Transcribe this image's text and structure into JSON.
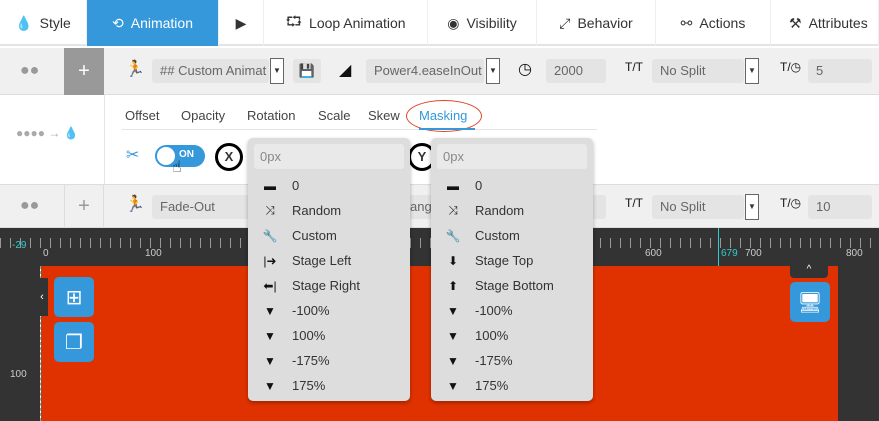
{
  "tabs": [
    {
      "label": "Style",
      "icon": "drop-icon"
    },
    {
      "label": "Animation",
      "icon": "history-icon",
      "active": true
    },
    {
      "label": "",
      "icon": "play-icon"
    },
    {
      "label": "Loop Animation",
      "icon": "loop-icon"
    },
    {
      "label": "Visibility",
      "icon": "eye-icon"
    },
    {
      "label": "Behavior",
      "icon": "expand-icon"
    },
    {
      "label": "Actions",
      "icon": "link-icon"
    },
    {
      "label": "Attributes",
      "icon": "tools-icon"
    }
  ],
  "row1": {
    "animation": "## Custom Animat",
    "easing": "Power4.easeInOut",
    "duration": "2000",
    "split": "No Split",
    "stagger": "5",
    "add": "+"
  },
  "subtabs": [
    "Offset",
    "Opacity",
    "Rotation",
    "Scale",
    "Skew",
    "Masking"
  ],
  "masking": {
    "toggle": "ON",
    "x_label": "X",
    "y_label": "Y",
    "x_value": "0px",
    "y_value": "0px"
  },
  "x_options": [
    {
      "icon": "minus-icon",
      "label": "0"
    },
    {
      "icon": "random-icon",
      "label": "Random"
    },
    {
      "icon": "wrench-icon",
      "label": "Custom"
    },
    {
      "icon": "stage-left-icon",
      "label": "Stage Left"
    },
    {
      "icon": "stage-right-icon",
      "label": "Stage Right"
    },
    {
      "icon": "funnel-icon",
      "label": "-100%"
    },
    {
      "icon": "funnel-icon",
      "label": "100%"
    },
    {
      "icon": "funnel-icon",
      "label": "-175%"
    },
    {
      "icon": "funnel-icon",
      "label": "175%"
    }
  ],
  "y_options": [
    {
      "icon": "minus-icon",
      "label": "0"
    },
    {
      "icon": "random-icon",
      "label": "Random"
    },
    {
      "icon": "wrench-icon",
      "label": "Custom"
    },
    {
      "icon": "stage-top-icon",
      "label": "Stage Top"
    },
    {
      "icon": "stage-bottom-icon",
      "label": "Stage Bottom"
    },
    {
      "icon": "funnel-icon",
      "label": "-100%"
    },
    {
      "icon": "funnel-icon",
      "label": "100%"
    },
    {
      "icon": "funnel-icon",
      "label": "-175%"
    },
    {
      "icon": "funnel-icon",
      "label": "175%"
    }
  ],
  "row3": {
    "animation": "Fade-Out",
    "easing_partial": "ang",
    "split": "No Split",
    "stagger": "10",
    "add": "+"
  },
  "ruler": {
    "h_labels": [
      "-29",
      "0",
      "100",
      "600",
      "679",
      "700",
      "800"
    ],
    "v_labels": [
      "100"
    ]
  },
  "colors": {
    "accent": "#3498db",
    "canvas": "#e03200",
    "highlight_circle": "#e0452a"
  }
}
